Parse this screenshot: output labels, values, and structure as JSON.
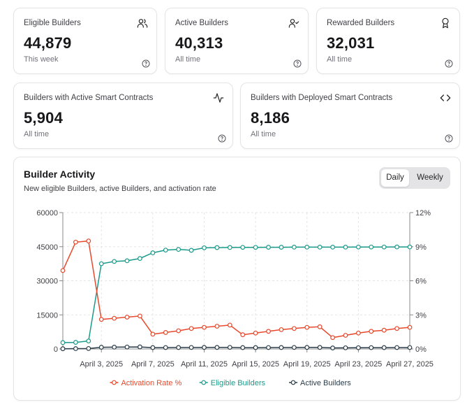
{
  "stats": {
    "eligible": {
      "label": "Eligible Builders",
      "value": "44,879",
      "sub": "This week",
      "icon": "users-icon"
    },
    "active": {
      "label": "Active Builders",
      "value": "40,313",
      "sub": "All time",
      "icon": "user-check-icon"
    },
    "rewarded": {
      "label": "Rewarded Builders",
      "value": "32,031",
      "sub": "All time",
      "icon": "award-icon"
    },
    "active_contracts": {
      "label": "Builders with Active Smart Contracts",
      "value": "5,904",
      "sub": "All time",
      "icon": "activity-icon"
    },
    "deployed_contracts": {
      "label": "Builders with Deployed Smart Contracts",
      "value": "8,186",
      "sub": "All time",
      "icon": "code-icon"
    }
  },
  "chart": {
    "title": "Builder Activity",
    "subtitle": "New eligible Builders, active Builders, and activation rate",
    "toggle": {
      "daily": "Daily",
      "weekly": "Weekly",
      "selected": "Daily"
    }
  },
  "chart_data": {
    "type": "line",
    "x": [
      "March 31, 2025",
      "April 1, 2025",
      "April 2, 2025",
      "April 3, 2025",
      "April 4, 2025",
      "April 5, 2025",
      "April 6, 2025",
      "April 7, 2025",
      "April 8, 2025",
      "April 9, 2025",
      "April 10, 2025",
      "April 11, 2025",
      "April 12, 2025",
      "April 13, 2025",
      "April 14, 2025",
      "April 15, 2025",
      "April 16, 2025",
      "April 17, 2025",
      "April 18, 2025",
      "April 19, 2025",
      "April 20, 2025",
      "April 21, 2025",
      "April 22, 2025",
      "April 23, 2025",
      "April 24, 2025",
      "April 25, 2025",
      "April 26, 2025",
      "April 27, 2025"
    ],
    "x_tick_labels": [
      "April 3, 2025",
      "April 7, 2025",
      "April 11, 2025",
      "April 15, 2025",
      "April 19, 2025",
      "April 23, 2025",
      "April 27, 2025"
    ],
    "x_tick_indices": [
      3,
      7,
      11,
      15,
      19,
      23,
      27
    ],
    "y_left_ticks": [
      "0",
      "15000",
      "30000",
      "45000",
      "60000"
    ],
    "y_right_ticks": [
      "0%",
      "3%",
      "6%",
      "9%",
      "12%"
    ],
    "ylim_left": [
      0,
      60000
    ],
    "ylim_right": [
      0,
      12
    ],
    "series": [
      {
        "name": "Activation Rate %",
        "axis": "right",
        "color": "#e8492c",
        "values": [
          6.9,
          9.4,
          9.5,
          2.6,
          2.7,
          2.8,
          2.9,
          1.3,
          1.45,
          1.6,
          1.8,
          1.9,
          2.0,
          2.1,
          1.25,
          1.4,
          1.55,
          1.7,
          1.8,
          1.9,
          1.95,
          1.0,
          1.2,
          1.4,
          1.55,
          1.65,
          1.8,
          1.9
        ]
      },
      {
        "name": "Eligible Builders",
        "axis": "left",
        "color": "#1a9a8b",
        "values": [
          2800,
          2900,
          3500,
          37500,
          38500,
          38800,
          39800,
          42300,
          43500,
          43800,
          43400,
          44500,
          44600,
          44650,
          44700,
          44700,
          44750,
          44750,
          44800,
          44800,
          44800,
          44800,
          44800,
          44850,
          44850,
          44850,
          44879,
          44879
        ]
      },
      {
        "name": "Active Builders",
        "axis": "left",
        "color": "#2b3d4a",
        "values": [
          100,
          150,
          200,
          750,
          800,
          850,
          900,
          600,
          620,
          640,
          660,
          680,
          680,
          700,
          600,
          600,
          620,
          640,
          660,
          680,
          680,
          450,
          500,
          550,
          580,
          600,
          620,
          620
        ]
      }
    ],
    "grid": true,
    "legend": "bottom-center"
  }
}
